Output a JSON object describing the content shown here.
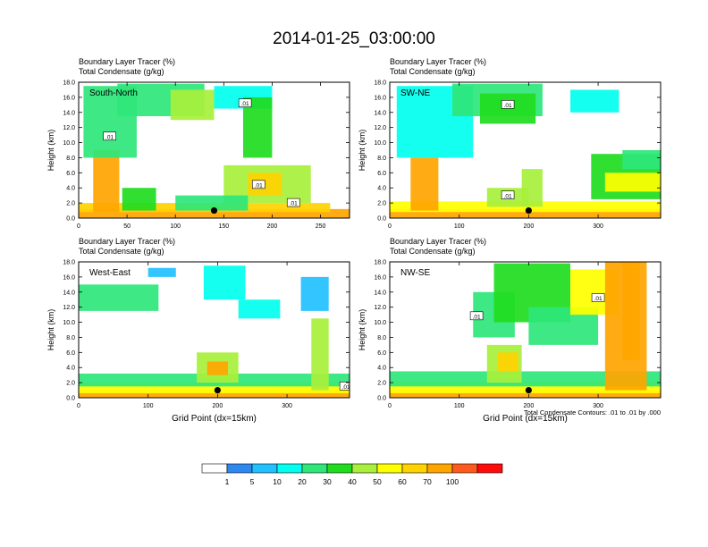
{
  "chart_data": {
    "type": "heatmap",
    "title": "2014-01-25_03:00:00",
    "colorbar": {
      "colors": [
        "#ffffff",
        "#2f87f0",
        "#21c0ff",
        "#00ffee",
        "#2ee67a",
        "#1fdc1f",
        "#a8f03c",
        "#ffff00",
        "#ffd200",
        "#ffa500",
        "#ff5a1e",
        "#ff0a0a"
      ],
      "labels": [
        "1",
        "5",
        "10",
        "20",
        "30",
        "40",
        "50",
        "60",
        "70",
        "100"
      ]
    },
    "note": "Total Condensate Contours: .01 to .01 by .000",
    "panels": [
      {
        "name": "South-North",
        "line1": "Boundary Layer Tracer   (%)",
        "line2": "Total Condensate   (g/kg)",
        "ylabel": "Height (km)",
        "xlabel": "",
        "ylim": [
          0,
          18
        ],
        "xlim": [
          0,
          280
        ],
        "yticks": [
          "0.0",
          "2.0",
          "4.0",
          "6.0",
          "8.0",
          "10.0",
          "12.0",
          "14.0",
          "16.0",
          "18.0"
        ],
        "xticks": [
          0,
          50,
          100,
          150,
          200,
          250
        ],
        "marker": [
          140,
          1.0
        ],
        "contour_labels": [
          {
            "text": ".01",
            "x": 32,
            "y": 10.8
          },
          {
            "text": ".01",
            "x": 172,
            "y": 15.2
          },
          {
            "text": ".01",
            "x": 186,
            "y": 4.4
          },
          {
            "text": ".01",
            "x": 222,
            "y": 2.0
          }
        ],
        "features": [
          {
            "x0": 0,
            "x1": 280,
            "y0": 0,
            "y1": 1.2,
            "v": 90
          },
          {
            "x0": 0,
            "x1": 260,
            "y0": 0.8,
            "y1": 2.0,
            "v": 60
          },
          {
            "x0": 15,
            "x1": 42,
            "y0": 0.8,
            "y1": 9.0,
            "v": 75
          },
          {
            "x0": 5,
            "x1": 60,
            "y0": 8.0,
            "y1": 17.5,
            "v": 20
          },
          {
            "x0": 40,
            "x1": 130,
            "y0": 13.5,
            "y1": 17.8,
            "v": 22
          },
          {
            "x0": 95,
            "x1": 140,
            "y0": 13.0,
            "y1": 17.0,
            "v": 40
          },
          {
            "x0": 140,
            "x1": 200,
            "y0": 14.5,
            "y1": 17.5,
            "v": 15
          },
          {
            "x0": 170,
            "x1": 200,
            "y0": 8.0,
            "y1": 16.0,
            "v": 30
          },
          {
            "x0": 150,
            "x1": 240,
            "y0": 2.0,
            "y1": 7.0,
            "v": 45
          },
          {
            "x0": 175,
            "x1": 210,
            "y0": 3.0,
            "y1": 6.0,
            "v": 65
          },
          {
            "x0": 100,
            "x1": 175,
            "y0": 1.0,
            "y1": 3.0,
            "v": 25
          },
          {
            "x0": 45,
            "x1": 80,
            "y0": 1.0,
            "y1": 4.0,
            "v": 30
          }
        ]
      },
      {
        "name": "SW-NE",
        "line1": "Boundary Layer Tracer   (%)",
        "line2": "Total Condensate   (g/kg)",
        "ylabel": "Height (km)",
        "xlabel": "",
        "ylim": [
          0,
          18
        ],
        "xlim": [
          0,
          390
        ],
        "yticks": [
          "0.0",
          "2.0",
          "4.0",
          "6.0",
          "8.0",
          "10.0",
          "12.0",
          "14.0",
          "16.0",
          "18.0"
        ],
        "xticks": [
          0,
          100,
          200,
          300
        ],
        "marker": [
          200,
          1.0
        ],
        "contour_labels": [
          {
            "text": ".01",
            "x": 170,
            "y": 15.0
          },
          {
            "text": ".01",
            "x": 170,
            "y": 3.0
          }
        ],
        "features": [
          {
            "x0": 0,
            "x1": 390,
            "y0": 0,
            "y1": 1.2,
            "v": 90
          },
          {
            "x0": 0,
            "x1": 390,
            "y0": 0.8,
            "y1": 2.2,
            "v": 55
          },
          {
            "x0": 30,
            "x1": 70,
            "y0": 1.0,
            "y1": 8.0,
            "v": 70
          },
          {
            "x0": 10,
            "x1": 120,
            "y0": 8.0,
            "y1": 17.5,
            "v": 18
          },
          {
            "x0": 90,
            "x1": 220,
            "y0": 13.5,
            "y1": 17.8,
            "v": 25
          },
          {
            "x0": 130,
            "x1": 210,
            "y0": 12.5,
            "y1": 16.5,
            "v": 35
          },
          {
            "x0": 260,
            "x1": 330,
            "y0": 14.0,
            "y1": 17.0,
            "v": 15
          },
          {
            "x0": 190,
            "x1": 220,
            "y0": 1.5,
            "y1": 6.5,
            "v": 45
          },
          {
            "x0": 140,
            "x1": 200,
            "y0": 1.5,
            "y1": 4.0,
            "v": 40
          },
          {
            "x0": 290,
            "x1": 390,
            "y0": 2.5,
            "y1": 8.5,
            "v": 35
          },
          {
            "x0": 310,
            "x1": 390,
            "y0": 3.5,
            "y1": 6.0,
            "v": 55
          },
          {
            "x0": 335,
            "x1": 390,
            "y0": 6.5,
            "y1": 9.0,
            "v": 25
          }
        ]
      },
      {
        "name": "West-East",
        "line1": "Boundary Layer Tracer   (%)",
        "line2": "Total Condensate   (g/kg)",
        "ylabel": "Height (km)",
        "xlabel": "Grid Point (dx=15km)",
        "ylim": [
          0,
          18
        ],
        "xlim": [
          0,
          390
        ],
        "yticks": [
          "0.0",
          "2.0",
          "4.0",
          "6.0",
          "8.0",
          "10.0",
          "12.0",
          "14.0",
          "16.0",
          "18.0"
        ],
        "xticks": [
          0,
          100,
          200,
          300
        ],
        "marker": [
          200,
          1.0
        ],
        "contour_labels": [
          {
            "text": ".01",
            "x": 385,
            "y": 1.5
          }
        ],
        "features": [
          {
            "x0": 0,
            "x1": 390,
            "y0": 0,
            "y1": 1.0,
            "v": 90
          },
          {
            "x0": 0,
            "x1": 390,
            "y0": 0.6,
            "y1": 2.0,
            "v": 55
          },
          {
            "x0": 0,
            "x1": 390,
            "y0": 1.5,
            "y1": 3.2,
            "v": 20
          },
          {
            "x0": 0,
            "x1": 115,
            "y0": 11.5,
            "y1": 15.0,
            "v": 20
          },
          {
            "x0": 100,
            "x1": 140,
            "y0": 16.0,
            "y1": 17.2,
            "v": 5
          },
          {
            "x0": 180,
            "x1": 240,
            "y0": 13.0,
            "y1": 17.5,
            "v": 15
          },
          {
            "x0": 230,
            "x1": 290,
            "y0": 10.5,
            "y1": 13.0,
            "v": 10
          },
          {
            "x0": 320,
            "x1": 360,
            "y0": 11.5,
            "y1": 16.0,
            "v": 8
          },
          {
            "x0": 170,
            "x1": 230,
            "y0": 2.0,
            "y1": 6.0,
            "v": 45
          },
          {
            "x0": 185,
            "x1": 215,
            "y0": 3.0,
            "y1": 4.8,
            "v": 70
          },
          {
            "x0": 335,
            "x1": 360,
            "y0": 1.0,
            "y1": 10.5,
            "v": 40
          }
        ]
      },
      {
        "name": "NW-SE",
        "line1": "Boundary Layer Tracer   (%)",
        "line2": "Total Condensate   (g/kg)",
        "ylabel": "Height (km)",
        "xlabel": "Grid Point (dx=15km)",
        "ylim": [
          0,
          18
        ],
        "xlim": [
          0,
          390
        ],
        "yticks": [
          "0.0",
          "2.0",
          "4.0",
          "6.0",
          "8.0",
          "10.0",
          "12.0",
          "14.0",
          "16.0",
          "18.0"
        ],
        "xticks": [
          0,
          100,
          200,
          300
        ],
        "marker": [
          200,
          1.0
        ],
        "contour_labels": [
          {
            "text": ".01",
            "x": 125,
            "y": 10.8
          },
          {
            "text": ".01",
            "x": 300,
            "y": 13.2
          }
        ],
        "features": [
          {
            "x0": 0,
            "x1": 390,
            "y0": 0,
            "y1": 1.0,
            "v": 90
          },
          {
            "x0": 0,
            "x1": 390,
            "y0": 0.6,
            "y1": 2.2,
            "v": 55
          },
          {
            "x0": 0,
            "x1": 390,
            "y0": 1.5,
            "y1": 3.5,
            "v": 20
          },
          {
            "x0": 120,
            "x1": 180,
            "y0": 8.0,
            "y1": 14.0,
            "v": 25
          },
          {
            "x0": 150,
            "x1": 260,
            "y0": 10.0,
            "y1": 17.8,
            "v": 30
          },
          {
            "x0": 200,
            "x1": 300,
            "y0": 7.0,
            "y1": 12.0,
            "v": 22
          },
          {
            "x0": 260,
            "x1": 330,
            "y0": 11.0,
            "y1": 17.0,
            "v": 50
          },
          {
            "x0": 310,
            "x1": 370,
            "y0": 1.0,
            "y1": 18.0,
            "v": 75
          },
          {
            "x0": 335,
            "x1": 360,
            "y0": 5.0,
            "y1": 18.0,
            "v": 90
          },
          {
            "x0": 140,
            "x1": 190,
            "y0": 2.0,
            "y1": 7.0,
            "v": 40
          },
          {
            "x0": 155,
            "x1": 185,
            "y0": 3.5,
            "y1": 6.0,
            "v": 60
          }
        ]
      }
    ]
  }
}
